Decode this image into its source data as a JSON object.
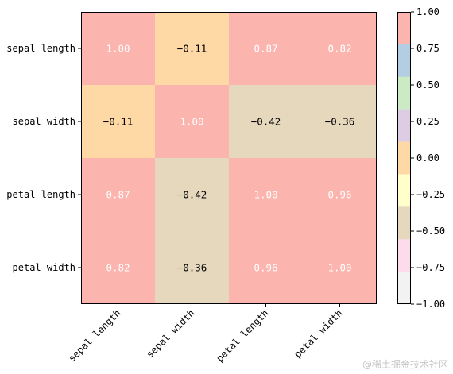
{
  "chart_data": {
    "type": "heatmap",
    "title": "",
    "xlabel": "",
    "ylabel": "",
    "x_categories": [
      "sepal length",
      "sepal width",
      "petal length",
      "petal width"
    ],
    "y_categories": [
      "sepal length",
      "sepal width",
      "petal length",
      "petal width"
    ],
    "values": [
      [
        1.0,
        -0.11,
        0.87,
        0.82
      ],
      [
        -0.11,
        1.0,
        -0.42,
        -0.36
      ],
      [
        0.87,
        -0.42,
        1.0,
        0.96
      ],
      [
        0.82,
        -0.36,
        0.96,
        1.0
      ]
    ],
    "value_format": "2 decimals",
    "colormap": "Pastel1",
    "colorbar": {
      "range": [
        -1.0,
        1.0
      ],
      "ticks": [
        1.0,
        0.75,
        0.5,
        0.25,
        0.0,
        -0.25,
        -0.5,
        -0.75,
        -1.0
      ],
      "tick_labels": [
        "1.00",
        "0.75",
        "0.50",
        "0.25",
        "0.00",
        "−0.25",
        "−0.50",
        "−0.75",
        "−1.00"
      ],
      "bins_top_to_bottom": [
        "#fbb4ae",
        "#b3cde3",
        "#ccebc5",
        "#decbe4",
        "#fed9a6",
        "#ffffcc",
        "#e5d8bd",
        "#fddaec",
        "#f2f2f2"
      ]
    },
    "grid": false,
    "legend": "colorbar-right",
    "text_colors": {
      "light_cell": "#ffffff",
      "dark_cell": "#000000"
    }
  },
  "watermark": "@稀土掘金技术社区"
}
